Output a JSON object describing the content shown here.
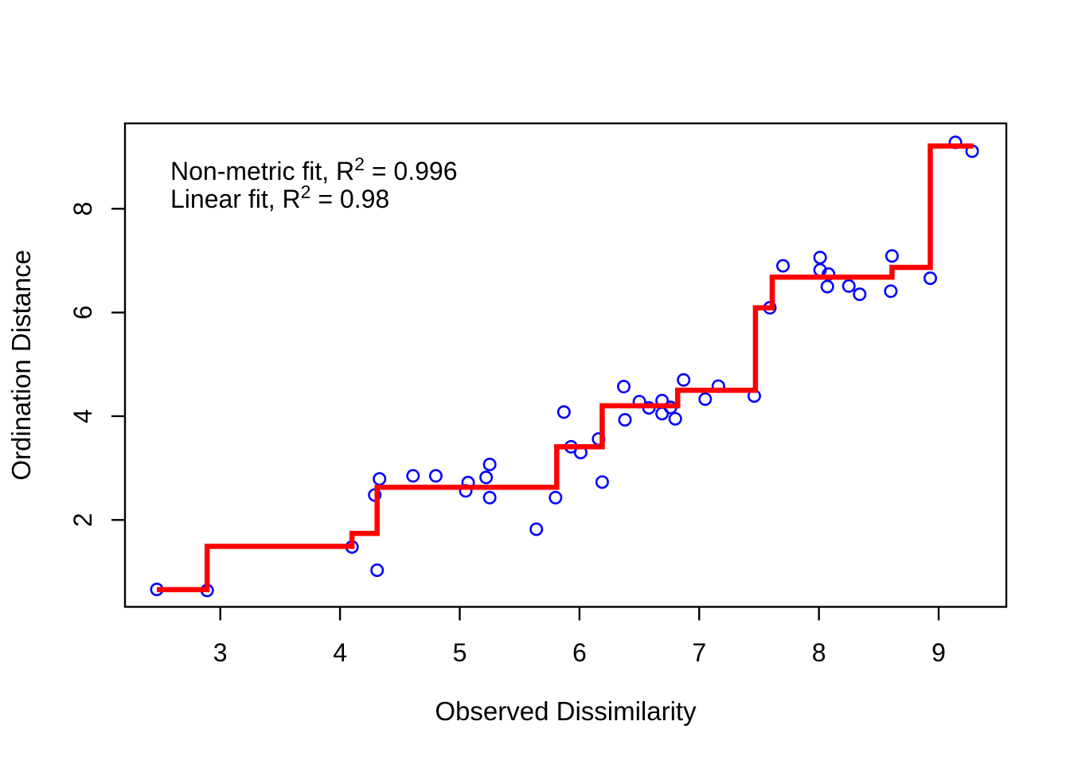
{
  "chart_data": {
    "type": "scatter",
    "title": "",
    "xlabel": "Observed Dissimilarity",
    "ylabel": "Ordination Distance",
    "x_ticks": [
      3,
      4,
      5,
      6,
      7,
      8,
      9
    ],
    "y_ticks": [
      2,
      4,
      6,
      8
    ],
    "xlim": [
      2.204,
      9.565
    ],
    "ylim": [
      0.324,
      9.647
    ],
    "grid": false,
    "legend_position": "none",
    "annotations": [
      {
        "prefix": "Non-metric fit, R",
        "sup": "2",
        "suffix": " = 0.996"
      },
      {
        "prefix": "Linear fit, R",
        "sup": "2",
        "suffix": " = 0.98"
      }
    ],
    "colors": {
      "points": "#0000ff",
      "step_fit": "#ff0000",
      "axis": "#000000",
      "background": "#ffffff"
    },
    "series": [
      {
        "name": "shepard-points",
        "type": "scatter",
        "marker": "open-circle",
        "points": [
          [
            2.47,
            0.66
          ],
          [
            2.89,
            0.64
          ],
          [
            4.1,
            1.48
          ],
          [
            4.31,
            1.03
          ],
          [
            4.29,
            2.48
          ],
          [
            4.33,
            2.79
          ],
          [
            4.61,
            2.85
          ],
          [
            4.8,
            2.85
          ],
          [
            5.05,
            2.56
          ],
          [
            5.07,
            2.72
          ],
          [
            5.22,
            2.82
          ],
          [
            5.25,
            3.07
          ],
          [
            5.25,
            2.43
          ],
          [
            5.64,
            1.82
          ],
          [
            5.8,
            2.43
          ],
          [
            5.87,
            4.08
          ],
          [
            5.93,
            3.41
          ],
          [
            6.01,
            3.3
          ],
          [
            6.16,
            3.56
          ],
          [
            6.19,
            2.73
          ],
          [
            6.37,
            4.57
          ],
          [
            6.38,
            3.93
          ],
          [
            6.5,
            4.28
          ],
          [
            6.58,
            4.16
          ],
          [
            6.69,
            4.3
          ],
          [
            6.69,
            4.05
          ],
          [
            6.76,
            4.17
          ],
          [
            6.8,
            3.95
          ],
          [
            6.87,
            4.7
          ],
          [
            7.05,
            4.33
          ],
          [
            7.16,
            4.58
          ],
          [
            7.46,
            4.39
          ],
          [
            7.59,
            6.09
          ],
          [
            7.7,
            6.9
          ],
          [
            8.01,
            7.06
          ],
          [
            8.01,
            6.82
          ],
          [
            8.08,
            6.74
          ],
          [
            8.07,
            6.5
          ],
          [
            8.25,
            6.51
          ],
          [
            8.34,
            6.35
          ],
          [
            8.61,
            7.09
          ],
          [
            8.6,
            6.41
          ],
          [
            8.93,
            6.66
          ],
          [
            9.14,
            9.28
          ],
          [
            9.28,
            9.11
          ]
        ]
      },
      {
        "name": "monotone-regression-step",
        "type": "step-line",
        "points": [
          [
            2.47,
            0.655
          ],
          [
            2.89,
            0.655
          ],
          [
            2.89,
            1.49
          ],
          [
            4.1,
            1.49
          ],
          [
            4.1,
            1.74
          ],
          [
            4.31,
            1.74
          ],
          [
            4.31,
            2.63
          ],
          [
            5.81,
            2.63
          ],
          [
            5.81,
            3.41
          ],
          [
            6.19,
            3.41
          ],
          [
            6.19,
            4.2
          ],
          [
            6.82,
            4.2
          ],
          [
            6.82,
            4.5
          ],
          [
            7.47,
            4.5
          ],
          [
            7.47,
            6.09
          ],
          [
            7.61,
            6.09
          ],
          [
            7.61,
            6.68
          ],
          [
            8.61,
            6.68
          ],
          [
            8.61,
            6.87
          ],
          [
            8.93,
            6.87
          ],
          [
            8.93,
            9.21
          ],
          [
            9.29,
            9.21
          ]
        ]
      }
    ]
  }
}
